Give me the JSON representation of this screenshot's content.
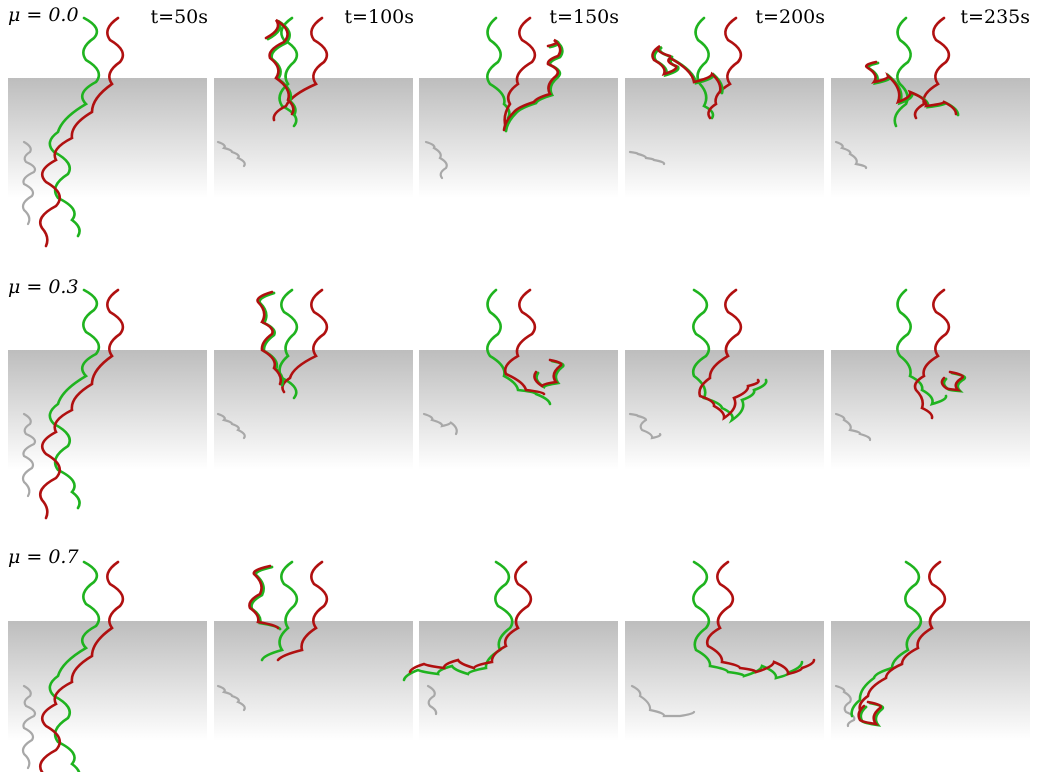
{
  "rows": [
    {
      "label": "μ = 0.0"
    },
    {
      "label": "μ = 0.3"
    },
    {
      "label": "μ = 0.7"
    }
  ],
  "columns": [
    {
      "label": "t=50s"
    },
    {
      "label": "t=100s"
    },
    {
      "label": "t=150s"
    },
    {
      "label": "t=200s"
    },
    {
      "label": "t=235s"
    }
  ],
  "colors": {
    "green_rod": "#1fb31f",
    "red_rod": "#b01010",
    "shadow": "#a8a8a8",
    "plane_top": "#bdbdbd",
    "plane_bottom": "#ffffff"
  }
}
